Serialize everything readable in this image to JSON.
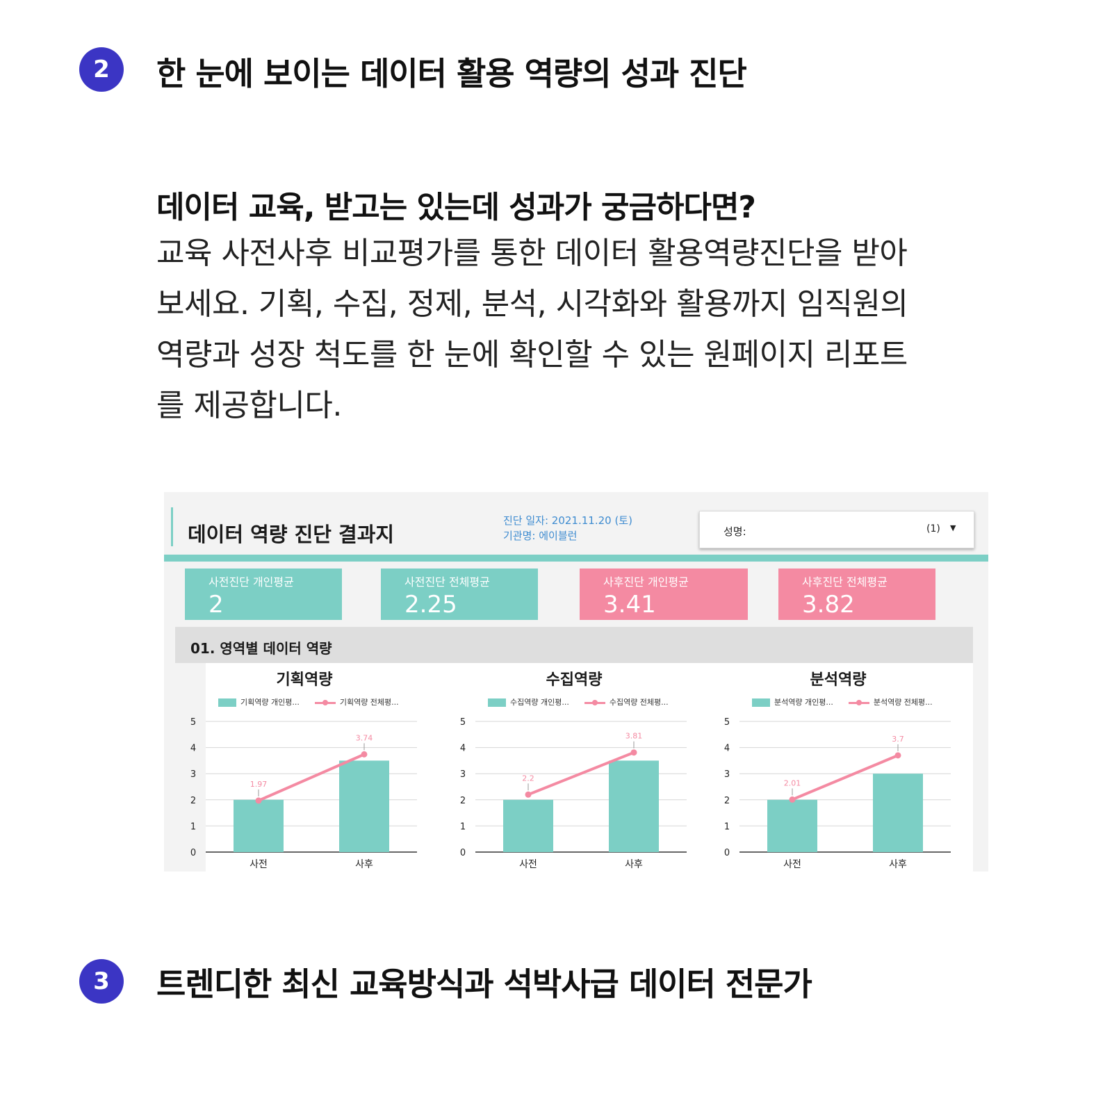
{
  "section2": {
    "number": "2",
    "title": "한 눈에 보이는 데이터 활용 역량의 성과 진단",
    "question": "데이터 교육, 받고는 있는데 성과가 궁금하다면?",
    "paragraph_lines": [
      "교육 사전사후 비교평가를 통한 데이터 활용역량진단을 받아",
      "보세요. 기획, 수집, 정제, 분석, 시각화와 활용까지 임직원의",
      "역량과 성장 척도를 한 눈에 확인할 수 있는 원페이지 리포트",
      "를 제공합니다."
    ]
  },
  "report": {
    "title": "데이터 역량 진단 결과지",
    "date_line": "진단 일자: 2021.11.20 (토)",
    "org_line": "기관명: 에이블런",
    "name_label": "성명:",
    "name_select_value": "(1)",
    "dropdown_icon": "caret-down-icon",
    "accent_color": "#7ccfc5",
    "pink_color": "#f48aa2",
    "kpis": [
      {
        "label": "사전진단 개인평균",
        "value": "2"
      },
      {
        "label": "사전진단 전체평균",
        "value": "2.25"
      },
      {
        "label": "사후진단 개인평균",
        "value": "3.41"
      },
      {
        "label": "사후진단 전체평균",
        "value": "3.82"
      }
    ],
    "section_title": "01. 영역별 데이터 역량"
  },
  "chart_data": [
    {
      "type": "bar",
      "title": "기획역량",
      "categories": [
        "사전",
        "사후"
      ],
      "ylim": [
        0,
        5
      ],
      "yticks": [
        0,
        1,
        2,
        3,
        4,
        5
      ],
      "grid": true,
      "legend_position": "top",
      "series": [
        {
          "name": "기획역량 개인평...",
          "kind": "bar",
          "values": [
            2,
            3.5
          ],
          "color": "#7ccfc5"
        },
        {
          "name": "기획역량 전체평...",
          "kind": "line",
          "values": [
            1.97,
            3.74
          ],
          "labels": [
            "1.97",
            "3.74"
          ],
          "color": "#f48aa2"
        }
      ]
    },
    {
      "type": "bar",
      "title": "수집역량",
      "categories": [
        "사전",
        "사후"
      ],
      "ylim": [
        0,
        5
      ],
      "yticks": [
        0,
        1,
        2,
        3,
        4,
        5
      ],
      "grid": true,
      "legend_position": "top",
      "series": [
        {
          "name": "수집역량 개인평...",
          "kind": "bar",
          "values": [
            2,
            3.5
          ],
          "color": "#7ccfc5"
        },
        {
          "name": "수집역량 전체평...",
          "kind": "line",
          "values": [
            2.2,
            3.81
          ],
          "labels": [
            "2.2",
            "3.81"
          ],
          "color": "#f48aa2"
        }
      ]
    },
    {
      "type": "bar",
      "title": "분석역량",
      "categories": [
        "사전",
        "사후"
      ],
      "ylim": [
        0,
        5
      ],
      "yticks": [
        0,
        1,
        2,
        3,
        4,
        5
      ],
      "grid": true,
      "legend_position": "top",
      "series": [
        {
          "name": "분석역량 개인평...",
          "kind": "bar",
          "values": [
            2,
            3
          ],
          "color": "#7ccfc5"
        },
        {
          "name": "분석역량 전체평...",
          "kind": "line",
          "values": [
            2.01,
            3.7
          ],
          "labels": [
            "2.01",
            "3.7"
          ],
          "color": "#f48aa2"
        }
      ]
    }
  ],
  "section3": {
    "number": "3",
    "title": "트렌디한 최신 교육방식과 석박사급 데이터 전문가"
  }
}
